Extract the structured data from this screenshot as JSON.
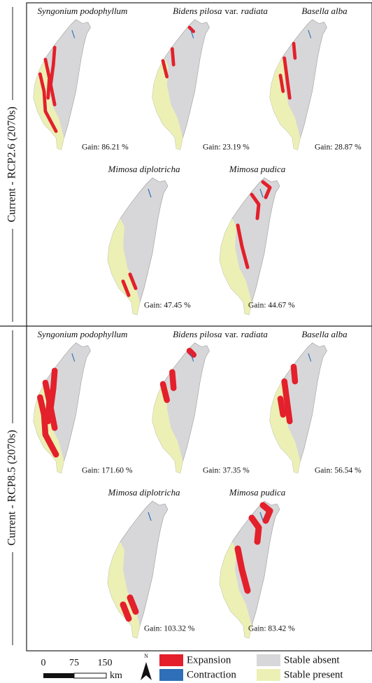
{
  "panels": [
    {
      "label": "Current - RCP2.6 (2070s)",
      "maps": [
        {
          "name": "Syngonium podophyllum",
          "gain": "Gain: 86.21 %"
        },
        {
          "name": "Bidens pilosa",
          "rank": "var.",
          "infraspecific": "radiata",
          "gain": "Gain: 23.19 %"
        },
        {
          "name": "Basella alba",
          "gain": "Gain: 28.87 %"
        },
        {
          "name": "Mimosa diplotricha",
          "gain": "Gain: 47.45 %"
        },
        {
          "name": "Mimosa pudica",
          "gain": "Gain: 44.67 %"
        }
      ]
    },
    {
      "label": "Current - RCP8.5 (2070s)",
      "maps": [
        {
          "name": "Syngonium podophyllum",
          "gain": "Gain: 171.60 %"
        },
        {
          "name": "Bidens pilosa",
          "rank": "var.",
          "infraspecific": "radiata",
          "gain": "Gain: 37.35 %"
        },
        {
          "name": "Basella alba",
          "gain": "Gain: 56.54 %"
        },
        {
          "name": "Mimosa diplotricha",
          "gain": "Gain: 103.32 %"
        },
        {
          "name": "Mimosa pudica",
          "gain": "Gain: 83.42 %"
        }
      ]
    }
  ],
  "scale_bar": {
    "labels": [
      "0",
      "75",
      "150"
    ],
    "unit": "km"
  },
  "north": "N",
  "legend": [
    "Expansion",
    "Contraction",
    "Stable absent",
    "Stable present"
  ]
}
